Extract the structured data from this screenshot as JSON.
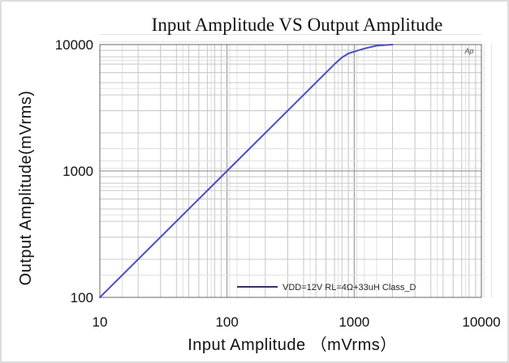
{
  "chart_data": {
    "type": "line",
    "title": "Input Amplitude VS Output Amplitude",
    "xlabel": "Input  Amplitude （mVrms）",
    "ylabel": "Output Amplitude(mVrms)",
    "x_scale": "log",
    "y_scale": "log",
    "xlim": [
      10,
      10000
    ],
    "ylim": [
      100,
      10000
    ],
    "x_ticks": [
      "10",
      "100",
      "1000",
      "10000"
    ],
    "y_ticks": [
      "100",
      "1000",
      "10000"
    ],
    "grid": true,
    "legend_position": "bottom-right",
    "corner_mark": "Ap",
    "series": [
      {
        "name": "VDD=12V RL=4Ω+33uH Class_D",
        "color": "#4b4bc8",
        "x": [
          10,
          20,
          50,
          100,
          200,
          500,
          700,
          800,
          900,
          1000,
          1200,
          1500,
          2000
        ],
        "y": [
          100,
          200,
          500,
          1000,
          2000,
          5000,
          7000,
          7900,
          8500,
          8800,
          9300,
          9800,
          10000
        ]
      }
    ]
  }
}
